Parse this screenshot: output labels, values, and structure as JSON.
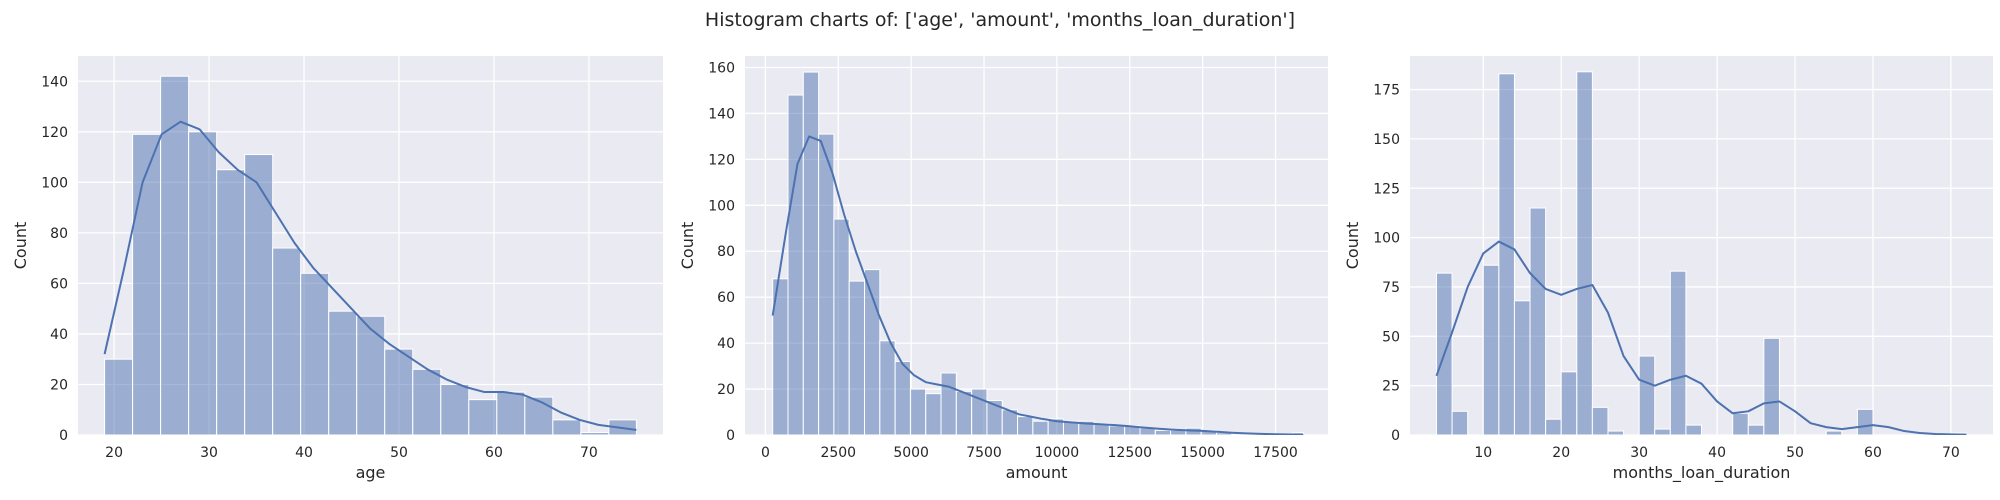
{
  "figure": {
    "title": "Histogram charts of: ['age', 'amount', 'months_loan_duration']"
  },
  "colors": {
    "bar": "#4c72b0",
    "line": "#4c72b0",
    "axes_bg": "#eaeaf2",
    "grid": "#ffffff"
  },
  "chart_data": [
    {
      "type": "bar",
      "xlabel": "age",
      "ylabel": "Count",
      "xlim": [
        16.2,
        77.8
      ],
      "ylim": [
        0,
        150
      ],
      "xticks": [
        20,
        30,
        40,
        50,
        60,
        70
      ],
      "yticks": [
        0,
        20,
        40,
        60,
        80,
        100,
        120,
        140
      ],
      "grid": true,
      "bins": [
        {
          "x0": 19.0,
          "x1": 21.95,
          "count": 30
        },
        {
          "x0": 21.95,
          "x1": 24.9,
          "count": 119
        },
        {
          "x0": 24.9,
          "x1": 27.85,
          "count": 142
        },
        {
          "x0": 27.85,
          "x1": 30.8,
          "count": 120
        },
        {
          "x0": 30.8,
          "x1": 33.75,
          "count": 105
        },
        {
          "x0": 33.75,
          "x1": 36.7,
          "count": 111
        },
        {
          "x0": 36.7,
          "x1": 39.65,
          "count": 74
        },
        {
          "x0": 39.65,
          "x1": 42.6,
          "count": 64
        },
        {
          "x0": 42.6,
          "x1": 45.55,
          "count": 49
        },
        {
          "x0": 45.55,
          "x1": 48.5,
          "count": 47
        },
        {
          "x0": 48.5,
          "x1": 51.45,
          "count": 34
        },
        {
          "x0": 51.45,
          "x1": 54.4,
          "count": 26
        },
        {
          "x0": 54.4,
          "x1": 57.35,
          "count": 20
        },
        {
          "x0": 57.35,
          "x1": 60.3,
          "count": 14
        },
        {
          "x0": 60.3,
          "x1": 63.25,
          "count": 17
        },
        {
          "x0": 63.25,
          "x1": 66.2,
          "count": 15
        },
        {
          "x0": 66.2,
          "x1": 69.15,
          "count": 6
        },
        {
          "x0": 69.15,
          "x1": 72.1,
          "count": 1
        },
        {
          "x0": 72.1,
          "x1": 75.0,
          "count": 6
        }
      ],
      "kde": [
        [
          19,
          32
        ],
        [
          21,
          65
        ],
        [
          23,
          100
        ],
        [
          25,
          119
        ],
        [
          27,
          124
        ],
        [
          29,
          121
        ],
        [
          31,
          112
        ],
        [
          33,
          105
        ],
        [
          35,
          100
        ],
        [
          37,
          88
        ],
        [
          39,
          76
        ],
        [
          41,
          66
        ],
        [
          43,
          58
        ],
        [
          45,
          50
        ],
        [
          47,
          42
        ],
        [
          49,
          36
        ],
        [
          51,
          31
        ],
        [
          53,
          26
        ],
        [
          55,
          22
        ],
        [
          57,
          19
        ],
        [
          59,
          17
        ],
        [
          61,
          17
        ],
        [
          63,
          16
        ],
        [
          65,
          13
        ],
        [
          67,
          9
        ],
        [
          69,
          6
        ],
        [
          71,
          4
        ],
        [
          73,
          3
        ],
        [
          75,
          2
        ]
      ]
    },
    {
      "type": "bar",
      "xlabel": "amount",
      "ylabel": "Count",
      "xlim": [
        -700,
        19300
      ],
      "ylim": [
        0,
        165
      ],
      "xticks": [
        0,
        2500,
        5000,
        7500,
        10000,
        12500,
        15000,
        17500
      ],
      "yticks": [
        0,
        20,
        40,
        60,
        80,
        100,
        120,
        140,
        160
      ],
      "grid": true,
      "bins": [
        {
          "x0": 250,
          "x1": 775,
          "count": 68
        },
        {
          "x0": 775,
          "x1": 1300,
          "count": 148
        },
        {
          "x0": 1300,
          "x1": 1825,
          "count": 158
        },
        {
          "x0": 1825,
          "x1": 2350,
          "count": 131
        },
        {
          "x0": 2350,
          "x1": 2875,
          "count": 94
        },
        {
          "x0": 2875,
          "x1": 3400,
          "count": 67
        },
        {
          "x0": 3400,
          "x1": 3925,
          "count": 72
        },
        {
          "x0": 3925,
          "x1": 4450,
          "count": 41
        },
        {
          "x0": 4450,
          "x1": 4975,
          "count": 32
        },
        {
          "x0": 4975,
          "x1": 5500,
          "count": 20
        },
        {
          "x0": 5500,
          "x1": 6025,
          "count": 18
        },
        {
          "x0": 6025,
          "x1": 6550,
          "count": 27
        },
        {
          "x0": 6550,
          "x1": 7075,
          "count": 19
        },
        {
          "x0": 7075,
          "x1": 7600,
          "count": 20
        },
        {
          "x0": 7600,
          "x1": 8125,
          "count": 15
        },
        {
          "x0": 8125,
          "x1": 8650,
          "count": 11
        },
        {
          "x0": 8650,
          "x1": 9175,
          "count": 8
        },
        {
          "x0": 9175,
          "x1": 9700,
          "count": 6
        },
        {
          "x0": 9700,
          "x1": 10225,
          "count": 7
        },
        {
          "x0": 10225,
          "x1": 10750,
          "count": 6
        },
        {
          "x0": 10750,
          "x1": 11275,
          "count": 6
        },
        {
          "x0": 11275,
          "x1": 11800,
          "count": 5
        },
        {
          "x0": 11800,
          "x1": 12325,
          "count": 4
        },
        {
          "x0": 12325,
          "x1": 12850,
          "count": 4
        },
        {
          "x0": 12850,
          "x1": 13375,
          "count": 3
        },
        {
          "x0": 13375,
          "x1": 13900,
          "count": 2
        },
        {
          "x0": 13900,
          "x1": 14425,
          "count": 2
        },
        {
          "x0": 14425,
          "x1": 14950,
          "count": 3
        },
        {
          "x0": 14950,
          "x1": 15475,
          "count": 2
        },
        {
          "x0": 15475,
          "x1": 16000,
          "count": 1
        },
        {
          "x0": 16000,
          "x1": 16525,
          "count": 0
        },
        {
          "x0": 16525,
          "x1": 17050,
          "count": 0
        },
        {
          "x0": 17050,
          "x1": 17575,
          "count": 0
        },
        {
          "x0": 17575,
          "x1": 18100,
          "count": 0
        },
        {
          "x0": 18100,
          "x1": 18450,
          "count": 1
        }
      ],
      "kde": [
        [
          250,
          52
        ],
        [
          700,
          88
        ],
        [
          1100,
          118
        ],
        [
          1500,
          130
        ],
        [
          1900,
          128
        ],
        [
          2300,
          114
        ],
        [
          2700,
          96
        ],
        [
          3100,
          80
        ],
        [
          3500,
          66
        ],
        [
          3900,
          52
        ],
        [
          4300,
          40
        ],
        [
          4700,
          31
        ],
        [
          5100,
          26
        ],
        [
          5500,
          23
        ],
        [
          5900,
          22
        ],
        [
          6300,
          21
        ],
        [
          6700,
          19
        ],
        [
          7100,
          17
        ],
        [
          7500,
          15
        ],
        [
          7900,
          13
        ],
        [
          8300,
          11
        ],
        [
          8700,
          9
        ],
        [
          9100,
          8
        ],
        [
          9500,
          7
        ],
        [
          10000,
          6
        ],
        [
          10500,
          5.5
        ],
        [
          11000,
          5
        ],
        [
          11500,
          4.7
        ],
        [
          12000,
          4.3
        ],
        [
          12500,
          3.8
        ],
        [
          13000,
          3.2
        ],
        [
          13500,
          2.7
        ],
        [
          14000,
          2.3
        ],
        [
          14500,
          2
        ],
        [
          15000,
          1.8
        ],
        [
          15500,
          1.4
        ],
        [
          16000,
          1
        ],
        [
          16500,
          0.7
        ],
        [
          17000,
          0.5
        ],
        [
          17500,
          0.3
        ],
        [
          18000,
          0.2
        ],
        [
          18450,
          0.1
        ]
      ]
    },
    {
      "type": "bar",
      "xlabel": "months_loan_duration",
      "ylabel": "Count",
      "xlim": [
        0.6,
        75.4
      ],
      "ylim": [
        0,
        192
      ],
      "xticks": [
        10,
        20,
        30,
        40,
        50,
        60,
        70
      ],
      "yticks": [
        0,
        25,
        50,
        75,
        100,
        125,
        150,
        175
      ],
      "grid": true,
      "bins": [
        {
          "x0": 4.0,
          "x1": 6.0,
          "count": 82
        },
        {
          "x0": 6.0,
          "x1": 8.0,
          "count": 12
        },
        {
          "x0": 8.0,
          "x1": 10.0,
          "count": 0
        },
        {
          "x0": 10.0,
          "x1": 12.0,
          "count": 86
        },
        {
          "x0": 12.0,
          "x1": 14.0,
          "count": 183
        },
        {
          "x0": 14.0,
          "x1": 16.0,
          "count": 68
        },
        {
          "x0": 16.0,
          "x1": 18.0,
          "count": 115
        },
        {
          "x0": 18.0,
          "x1": 20.0,
          "count": 8
        },
        {
          "x0": 20.0,
          "x1": 22.0,
          "count": 32
        },
        {
          "x0": 22.0,
          "x1": 24.0,
          "count": 184
        },
        {
          "x0": 24.0,
          "x1": 26.0,
          "count": 14
        },
        {
          "x0": 26.0,
          "x1": 28.0,
          "count": 2
        },
        {
          "x0": 28.0,
          "x1": 30.0,
          "count": 0
        },
        {
          "x0": 30.0,
          "x1": 32.0,
          "count": 40
        },
        {
          "x0": 32.0,
          "x1": 34.0,
          "count": 3
        },
        {
          "x0": 34.0,
          "x1": 36.0,
          "count": 83
        },
        {
          "x0": 36.0,
          "x1": 38.0,
          "count": 5
        },
        {
          "x0": 38.0,
          "x1": 40.0,
          "count": 0
        },
        {
          "x0": 40.0,
          "x1": 42.0,
          "count": 0
        },
        {
          "x0": 42.0,
          "x1": 44.0,
          "count": 11
        },
        {
          "x0": 44.0,
          "x1": 46.0,
          "count": 5
        },
        {
          "x0": 46.0,
          "x1": 48.0,
          "count": 49
        },
        {
          "x0": 48.0,
          "x1": 50.0,
          "count": 0
        },
        {
          "x0": 50.0,
          "x1": 52.0,
          "count": 0
        },
        {
          "x0": 52.0,
          "x1": 54.0,
          "count": 0
        },
        {
          "x0": 54.0,
          "x1": 56.0,
          "count": 2
        },
        {
          "x0": 56.0,
          "x1": 58.0,
          "count": 0
        },
        {
          "x0": 58.0,
          "x1": 60.0,
          "count": 13
        },
        {
          "x0": 60.0,
          "x1": 62.0,
          "count": 0
        },
        {
          "x0": 62.0,
          "x1": 64.0,
          "count": 0
        },
        {
          "x0": 64.0,
          "x1": 66.0,
          "count": 0
        },
        {
          "x0": 66.0,
          "x1": 68.0,
          "count": 0
        },
        {
          "x0": 68.0,
          "x1": 70.0,
          "count": 0
        },
        {
          "x0": 70.0,
          "x1": 72.0,
          "count": 1
        }
      ],
      "kde": [
        [
          4,
          30
        ],
        [
          6,
          52
        ],
        [
          8,
          75
        ],
        [
          10,
          92
        ],
        [
          12,
          98
        ],
        [
          14,
          94
        ],
        [
          16,
          82
        ],
        [
          18,
          74
        ],
        [
          20,
          71
        ],
        [
          22,
          74
        ],
        [
          24,
          76
        ],
        [
          26,
          62
        ],
        [
          28,
          40
        ],
        [
          30,
          28
        ],
        [
          32,
          25
        ],
        [
          34,
          28
        ],
        [
          36,
          30
        ],
        [
          38,
          26
        ],
        [
          40,
          17
        ],
        [
          42,
          11
        ],
        [
          44,
          12
        ],
        [
          46,
          16
        ],
        [
          48,
          17
        ],
        [
          50,
          12
        ],
        [
          52,
          6
        ],
        [
          54,
          4
        ],
        [
          56,
          3
        ],
        [
          58,
          4
        ],
        [
          60,
          5
        ],
        [
          62,
          4
        ],
        [
          64,
          2
        ],
        [
          66,
          1
        ],
        [
          68,
          0.5
        ],
        [
          70,
          0.3
        ],
        [
          72,
          0.2
        ]
      ]
    }
  ]
}
